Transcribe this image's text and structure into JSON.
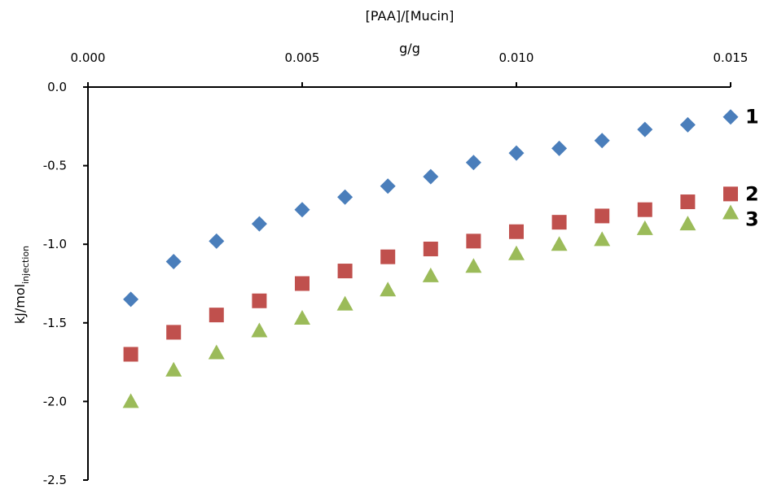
{
  "chart_data": {
    "type": "scatter",
    "title": "",
    "xlabel_line1": "[PAA]/[Mucin]",
    "xlabel_line2": "g/g",
    "ylabel_main": "kJ/mol",
    "ylabel_sub": "injection",
    "xlim": [
      0,
      0.015
    ],
    "ylim": [
      -2.5,
      0
    ],
    "x_position": "top",
    "grid": false,
    "legend": "none (series tagged by end labels)",
    "x_ticks": [
      "0.000",
      "0.005",
      "0.010",
      "0.015"
    ],
    "y_ticks": [
      "0.0",
      "-0.5",
      "-1.0",
      "-1.5",
      "-2.0",
      "-2.5"
    ],
    "x": [
      0.001,
      0.002,
      0.003,
      0.004,
      0.005,
      0.006,
      0.007,
      0.008,
      0.009,
      0.01,
      0.011,
      0.012,
      0.013,
      0.014,
      0.015
    ],
    "series": [
      {
        "name": "1",
        "marker": "diamond",
        "color": "#4a7ebb",
        "values": [
          -1.35,
          -1.11,
          -0.98,
          -0.87,
          -0.78,
          -0.7,
          -0.63,
          -0.57,
          -0.48,
          -0.42,
          -0.39,
          -0.34,
          -0.27,
          -0.24,
          -0.19
        ]
      },
      {
        "name": "2",
        "marker": "square",
        "color": "#c0504d",
        "values": [
          -1.7,
          -1.56,
          -1.45,
          -1.36,
          -1.25,
          -1.17,
          -1.08,
          -1.03,
          -0.98,
          -0.92,
          -0.86,
          -0.82,
          -0.78,
          -0.73,
          -0.68
        ]
      },
      {
        "name": "3",
        "marker": "triangle",
        "color": "#9bbb59",
        "values": [
          -2.0,
          -1.8,
          -1.69,
          -1.55,
          -1.47,
          -1.38,
          -1.29,
          -1.2,
          -1.14,
          -1.06,
          -1.0,
          -0.97,
          -0.9,
          -0.87,
          -0.8
        ]
      }
    ]
  }
}
